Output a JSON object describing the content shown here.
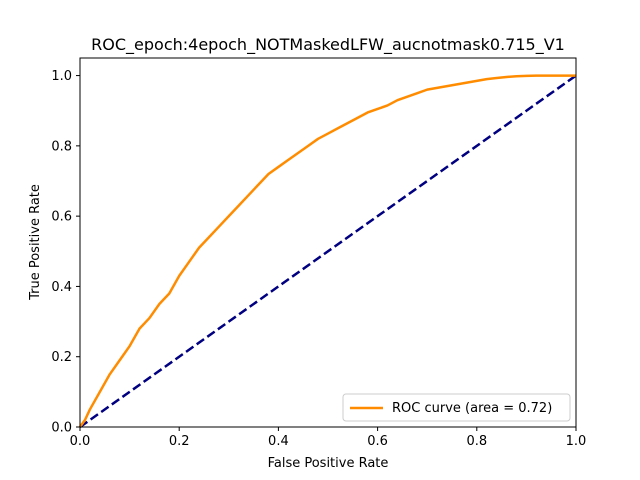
{
  "chart_data": {
    "type": "line",
    "title": "ROC_epoch:4epoch_NOTMaskedLFW_aucnotmask0.715_V1",
    "xlabel": "False Positive Rate",
    "ylabel": "True Positive Rate",
    "xlim": [
      0.0,
      1.0
    ],
    "ylim": [
      0.0,
      1.05
    ],
    "xticks": [
      0.0,
      0.2,
      0.4,
      0.6,
      0.8,
      1.0
    ],
    "yticks": [
      0.0,
      0.2,
      0.4,
      0.6,
      0.8,
      1.0
    ],
    "xtick_labels": [
      "0.0",
      "0.2",
      "0.4",
      "0.6",
      "0.8",
      "1.0"
    ],
    "ytick_labels": [
      "0.0",
      "0.2",
      "0.4",
      "0.6",
      "0.8",
      "1.0"
    ],
    "grid": false,
    "legend_position": "lower-right",
    "series": [
      {
        "name": "ROC curve (area = 0.72)",
        "color": "#ff8c00",
        "line_style": "solid",
        "x": [
          0.0,
          0.01,
          0.02,
          0.04,
          0.06,
          0.08,
          0.1,
          0.12,
          0.14,
          0.16,
          0.18,
          0.2,
          0.22,
          0.24,
          0.26,
          0.28,
          0.3,
          0.32,
          0.34,
          0.36,
          0.38,
          0.4,
          0.42,
          0.44,
          0.46,
          0.48,
          0.5,
          0.52,
          0.54,
          0.56,
          0.58,
          0.6,
          0.62,
          0.64,
          0.66,
          0.68,
          0.7,
          0.72,
          0.74,
          0.76,
          0.78,
          0.8,
          0.82,
          0.84,
          0.86,
          0.88,
          0.9,
          0.92,
          0.95,
          0.98,
          1.0
        ],
        "y": [
          0.0,
          0.02,
          0.05,
          0.1,
          0.15,
          0.19,
          0.23,
          0.28,
          0.31,
          0.35,
          0.38,
          0.43,
          0.47,
          0.51,
          0.54,
          0.57,
          0.6,
          0.63,
          0.66,
          0.69,
          0.72,
          0.74,
          0.76,
          0.78,
          0.8,
          0.82,
          0.835,
          0.85,
          0.865,
          0.88,
          0.895,
          0.905,
          0.915,
          0.93,
          0.94,
          0.95,
          0.96,
          0.965,
          0.97,
          0.975,
          0.98,
          0.985,
          0.99,
          0.993,
          0.996,
          0.998,
          0.999,
          1.0,
          1.0,
          1.0,
          1.0
        ]
      },
      {
        "name": "",
        "color": "#000080",
        "line_style": "dashed",
        "x": [
          0.0,
          1.0
        ],
        "y": [
          0.0,
          1.0
        ]
      }
    ]
  }
}
